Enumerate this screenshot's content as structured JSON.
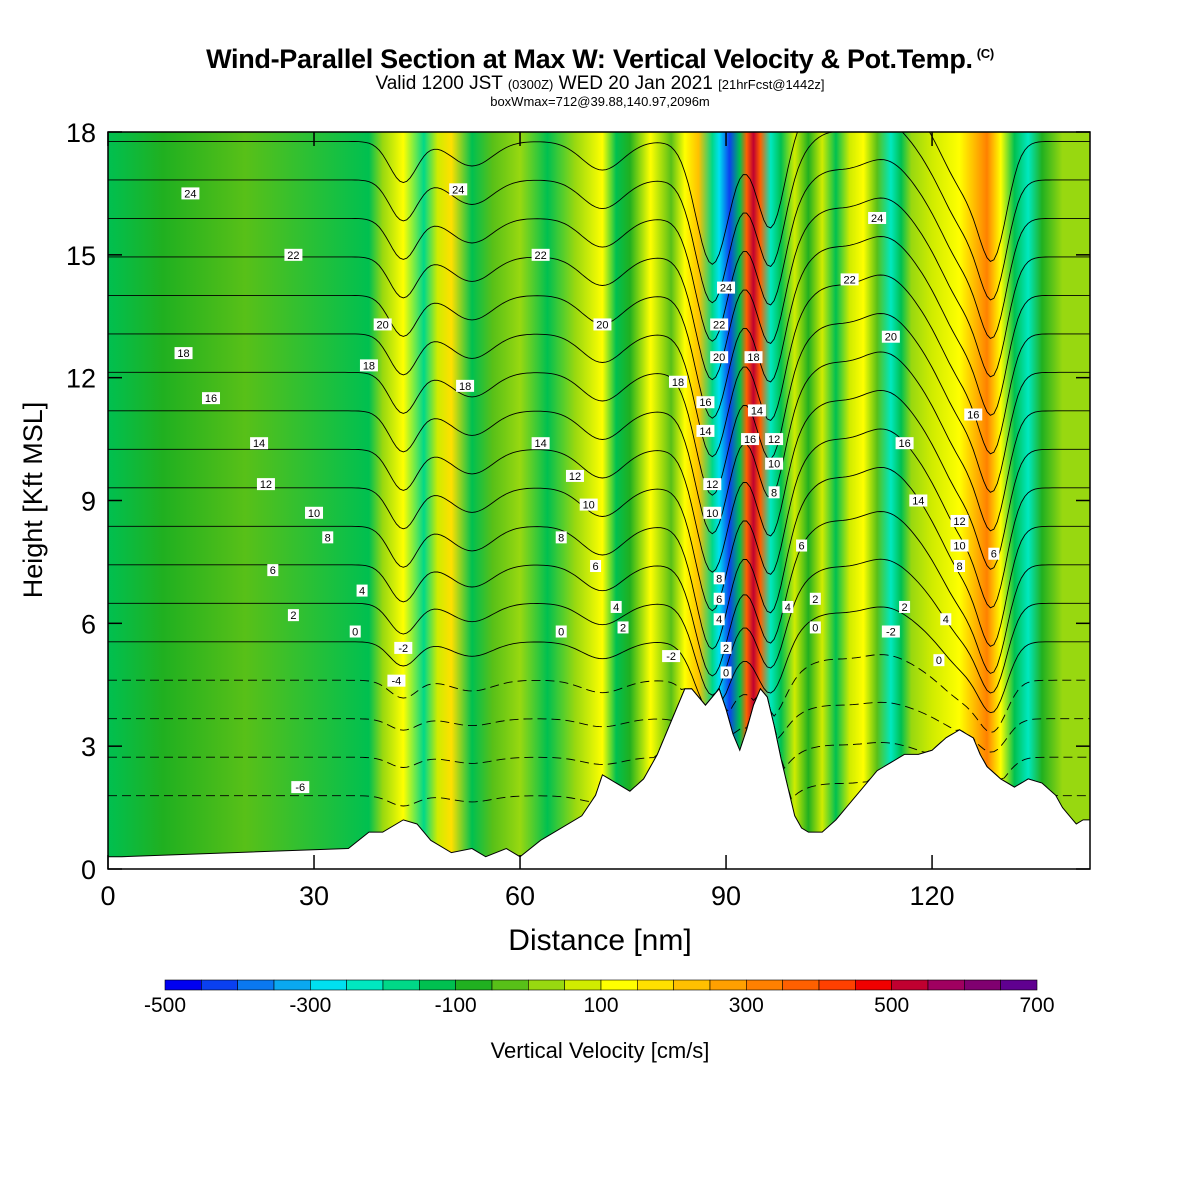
{
  "header": {
    "title": "Wind-Parallel Section at Max W: Vertical Velocity & Pot.Temp.",
    "copyright": "(C)",
    "valid_prefix": "Valid 1200 JST",
    "valid_utc": "(0300Z)",
    "valid_date": "WED 20 Jan 2021",
    "valid_fcst": "[21hrFcst@1442z]",
    "box_info": "boxWmax=712@39.88,140.97,2096m"
  },
  "chart_data": {
    "type": "heatmap",
    "xlabel": "Distance [nm]",
    "ylabel": "Height [Kft MSL]",
    "xlim": [
      0,
      143
    ],
    "ylim": [
      0,
      18
    ],
    "x_ticks": [
      0,
      30,
      60,
      90,
      120
    ],
    "y_ticks": [
      0,
      3,
      6,
      9,
      12,
      15,
      18
    ],
    "colorbar": {
      "label": "Vertical Velocity [cm/s]",
      "range": [
        -500,
        700
      ],
      "tick_labels": [
        -500,
        -300,
        -100,
        100,
        300,
        500,
        700
      ],
      "colors": [
        "#0000f0",
        "#0a40f0",
        "#0a78f0",
        "#0aa8f0",
        "#00e0f0",
        "#00e8c0",
        "#00d888",
        "#00c050",
        "#20b020",
        "#58c018",
        "#98d810",
        "#d0ec00",
        "#ffff00",
        "#ffe000",
        "#ffc000",
        "#ffa000",
        "#ff8000",
        "#ff6000",
        "#ff4000",
        "#f00000",
        "#c00030",
        "#a00060",
        "#800070",
        "#600090"
      ]
    },
    "velocity_bands": [
      {
        "x": 0,
        "w": -120
      },
      {
        "x": 8,
        "w": -60
      },
      {
        "x": 20,
        "w": -20
      },
      {
        "x": 38,
        "w": -140
      },
      {
        "x": 40,
        "w": 20
      },
      {
        "x": 43,
        "w": 140
      },
      {
        "x": 46,
        "w": -160
      },
      {
        "x": 48,
        "w": 60
      },
      {
        "x": 50,
        "w": 150
      },
      {
        "x": 53,
        "w": -130
      },
      {
        "x": 56,
        "w": -40
      },
      {
        "x": 60,
        "w": 20
      },
      {
        "x": 64,
        "w": -110
      },
      {
        "x": 68,
        "w": 30
      },
      {
        "x": 72,
        "w": 110
      },
      {
        "x": 74,
        "w": -140
      },
      {
        "x": 76,
        "w": -60
      },
      {
        "x": 79,
        "w": 100
      },
      {
        "x": 82,
        "w": -20
      },
      {
        "x": 84,
        "w": 120
      },
      {
        "x": 86,
        "w": 220
      },
      {
        "x": 88,
        "w": -160
      },
      {
        "x": 89,
        "w": -300
      },
      {
        "x": 90.5,
        "w": -420
      },
      {
        "x": 92,
        "w": -150
      },
      {
        "x": 93,
        "w": 360
      },
      {
        "x": 94,
        "w": 530
      },
      {
        "x": 95,
        "w": 350
      },
      {
        "x": 96.5,
        "w": -220
      },
      {
        "x": 98,
        "w": -130
      },
      {
        "x": 100,
        "w": 50
      },
      {
        "x": 102,
        "w": -60
      },
      {
        "x": 104,
        "w": 60
      },
      {
        "x": 106,
        "w": -140
      },
      {
        "x": 108,
        "w": 60
      },
      {
        "x": 110,
        "w": 120
      },
      {
        "x": 112,
        "w": -40
      },
      {
        "x": 114,
        "w": -240
      },
      {
        "x": 115.5,
        "w": -130
      },
      {
        "x": 117,
        "w": 20
      },
      {
        "x": 120,
        "w": 70
      },
      {
        "x": 124,
        "w": 110
      },
      {
        "x": 126,
        "w": 220
      },
      {
        "x": 128,
        "w": 300
      },
      {
        "x": 130,
        "w": 120
      },
      {
        "x": 132,
        "w": -120
      },
      {
        "x": 134,
        "w": -220
      },
      {
        "x": 136,
        "w": -80
      },
      {
        "x": 139,
        "w": 40
      },
      {
        "x": 143,
        "w": 40
      }
    ],
    "terrain": {
      "x": [
        0,
        2,
        35,
        38,
        40,
        43,
        45,
        47,
        50,
        53,
        55,
        58,
        60,
        63,
        66,
        69,
        71,
        72,
        74,
        76,
        78,
        80,
        81,
        82,
        83,
        84,
        85,
        86,
        87,
        88,
        89,
        90,
        91,
        92,
        93,
        94,
        95,
        96,
        97,
        98,
        99,
        100,
        101,
        102,
        104,
        106,
        108,
        110,
        112,
        114,
        116,
        118,
        120,
        122,
        124,
        126,
        127,
        128,
        130,
        132,
        133,
        134,
        136,
        138,
        139,
        140,
        141,
        142,
        143
      ],
      "y": [
        0.3,
        0.3,
        0.5,
        0.9,
        0.9,
        1.2,
        1.1,
        0.7,
        0.4,
        0.5,
        0.3,
        0.5,
        0.3,
        0.7,
        1.0,
        1.3,
        1.8,
        2.3,
        2.1,
        1.9,
        2.2,
        2.8,
        3.2,
        3.6,
        4.0,
        4.4,
        4.4,
        4.2,
        4.0,
        4.2,
        4.4,
        3.9,
        3.3,
        2.9,
        3.4,
        4.0,
        4.4,
        4.2,
        3.5,
        2.7,
        2.0,
        1.3,
        1.0,
        0.9,
        0.9,
        1.2,
        1.6,
        2.0,
        2.4,
        2.6,
        2.8,
        2.8,
        2.9,
        3.2,
        3.4,
        3.2,
        2.8,
        2.5,
        2.2,
        2.0,
        2.1,
        2.2,
        2.1,
        1.8,
        1.5,
        1.3,
        1.1,
        1.2,
        1.2
      ]
    },
    "theta_contours": {
      "levels": [
        -8,
        -6,
        -4,
        -2,
        0,
        2,
        4,
        6,
        8,
        10,
        12,
        14,
        16,
        18,
        20,
        22,
        24,
        26
      ],
      "labels": [
        {
          "x": 12,
          "y": 16.5,
          "text": "24"
        },
        {
          "x": 27,
          "y": 15.0,
          "text": "22"
        },
        {
          "x": 40,
          "y": 13.3,
          "text": "20"
        },
        {
          "x": 11,
          "y": 12.6,
          "text": "18"
        },
        {
          "x": 38,
          "y": 12.3,
          "text": "18"
        },
        {
          "x": 15,
          "y": 11.5,
          "text": "16"
        },
        {
          "x": 22,
          "y": 10.4,
          "text": "14"
        },
        {
          "x": 23,
          "y": 9.4,
          "text": "12"
        },
        {
          "x": 30,
          "y": 8.7,
          "text": "10"
        },
        {
          "x": 32,
          "y": 8.1,
          "text": "8"
        },
        {
          "x": 24,
          "y": 7.3,
          "text": "6"
        },
        {
          "x": 27,
          "y": 6.2,
          "text": "2"
        },
        {
          "x": 37,
          "y": 6.8,
          "text": "4"
        },
        {
          "x": 36,
          "y": 5.8,
          "text": "0"
        },
        {
          "x": 43,
          "y": 5.4,
          "text": "-2"
        },
        {
          "x": 42,
          "y": 4.6,
          "text": "-4"
        },
        {
          "x": 28,
          "y": 2.0,
          "text": "-6"
        },
        {
          "x": 51,
          "y": 16.6,
          "text": "24"
        },
        {
          "x": 63,
          "y": 15.0,
          "text": "22"
        },
        {
          "x": 72,
          "y": 13.3,
          "text": "20"
        },
        {
          "x": 52,
          "y": 11.8,
          "text": "18"
        },
        {
          "x": 63,
          "y": 10.4,
          "text": "14"
        },
        {
          "x": 68,
          "y": 9.6,
          "text": "12"
        },
        {
          "x": 70,
          "y": 8.9,
          "text": "10"
        },
        {
          "x": 66,
          "y": 8.1,
          "text": "8"
        },
        {
          "x": 71,
          "y": 7.4,
          "text": "6"
        },
        {
          "x": 74,
          "y": 6.4,
          "text": "4"
        },
        {
          "x": 75,
          "y": 5.9,
          "text": "2"
        },
        {
          "x": 66,
          "y": 5.8,
          "text": "0"
        },
        {
          "x": 82,
          "y": 5.2,
          "text": "-2"
        },
        {
          "x": 83,
          "y": 11.9,
          "text": "18"
        },
        {
          "x": 87,
          "y": 11.4,
          "text": "16"
        },
        {
          "x": 87,
          "y": 10.7,
          "text": "14"
        },
        {
          "x": 88,
          "y": 9.4,
          "text": "12"
        },
        {
          "x": 88,
          "y": 8.7,
          "text": "10"
        },
        {
          "x": 90,
          "y": 14.2,
          "text": "24"
        },
        {
          "x": 89,
          "y": 13.3,
          "text": "22"
        },
        {
          "x": 89,
          "y": 12.5,
          "text": "20"
        },
        {
          "x": 89,
          "y": 7.1,
          "text": "8"
        },
        {
          "x": 89,
          "y": 6.6,
          "text": "6"
        },
        {
          "x": 89,
          "y": 6.1,
          "text": "4"
        },
        {
          "x": 90,
          "y": 5.4,
          "text": "2"
        },
        {
          "x": 90,
          "y": 4.8,
          "text": "0"
        },
        {
          "x": 94,
          "y": 12.5,
          "text": "18"
        },
        {
          "x": 94.5,
          "y": 11.2,
          "text": "14"
        },
        {
          "x": 93.5,
          "y": 10.5,
          "text": "16"
        },
        {
          "x": 97,
          "y": 10.5,
          "text": "12"
        },
        {
          "x": 97,
          "y": 9.9,
          "text": "10"
        },
        {
          "x": 97,
          "y": 9.2,
          "text": "8"
        },
        {
          "x": 101,
          "y": 7.9,
          "text": "6"
        },
        {
          "x": 99,
          "y": 6.4,
          "text": "4"
        },
        {
          "x": 103,
          "y": 6.6,
          "text": "2"
        },
        {
          "x": 103,
          "y": 5.9,
          "text": "0"
        },
        {
          "x": 112,
          "y": 15.9,
          "text": "24"
        },
        {
          "x": 108,
          "y": 14.4,
          "text": "22"
        },
        {
          "x": 114,
          "y": 13.0,
          "text": "20"
        },
        {
          "x": 116,
          "y": 10.4,
          "text": "16"
        },
        {
          "x": 118,
          "y": 9.0,
          "text": "14"
        },
        {
          "x": 126,
          "y": 11.1,
          "text": "16"
        },
        {
          "x": 124,
          "y": 8.5,
          "text": "12"
        },
        {
          "x": 124,
          "y": 7.9,
          "text": "10"
        },
        {
          "x": 124,
          "y": 7.4,
          "text": "8"
        },
        {
          "x": 129,
          "y": 7.7,
          "text": "6"
        },
        {
          "x": 116,
          "y": 6.4,
          "text": "2"
        },
        {
          "x": 122,
          "y": 6.1,
          "text": "4"
        },
        {
          "x": 114,
          "y": 5.8,
          "text": "-2"
        },
        {
          "x": 121,
          "y": 5.1,
          "text": "0"
        }
      ]
    }
  }
}
